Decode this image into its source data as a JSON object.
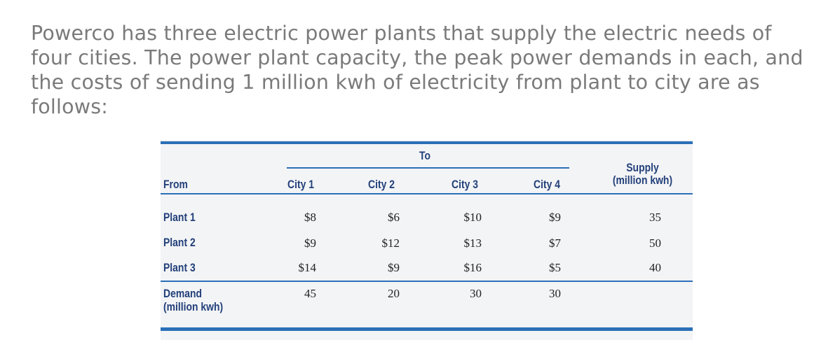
{
  "intro": "Powerco has three electric power plants that supply the electric needs of four cities. The power plant capacity, the peak power demands in each, and the costs of sending 1 million kwh of electricity from plant to city are as follows:",
  "table": {
    "to_label": "To",
    "from_label": "From",
    "columns": [
      "City 1",
      "City 2",
      "City 3",
      "City 4"
    ],
    "supply_label_line1": "Supply",
    "supply_label_line2": "(million kwh)",
    "rows": [
      {
        "label": "Plant 1",
        "costs": [
          "$8",
          "$6",
          "$10",
          "$9"
        ],
        "supply": "35"
      },
      {
        "label": "Plant 2",
        "costs": [
          "$9",
          "$12",
          "$13",
          "$7"
        ],
        "supply": "50"
      },
      {
        "label": "Plant 3",
        "costs": [
          "$14",
          "$9",
          "$16",
          "$5"
        ],
        "supply": "40"
      }
    ],
    "demand_label_line1": "Demand",
    "demand_label_line2": "(million kwh)",
    "demand": [
      "45",
      "20",
      "30",
      "30"
    ]
  },
  "colors": {
    "rule": "#2b6fb8",
    "header_text": "#23407a",
    "intro_text": "#7a7a7a"
  }
}
